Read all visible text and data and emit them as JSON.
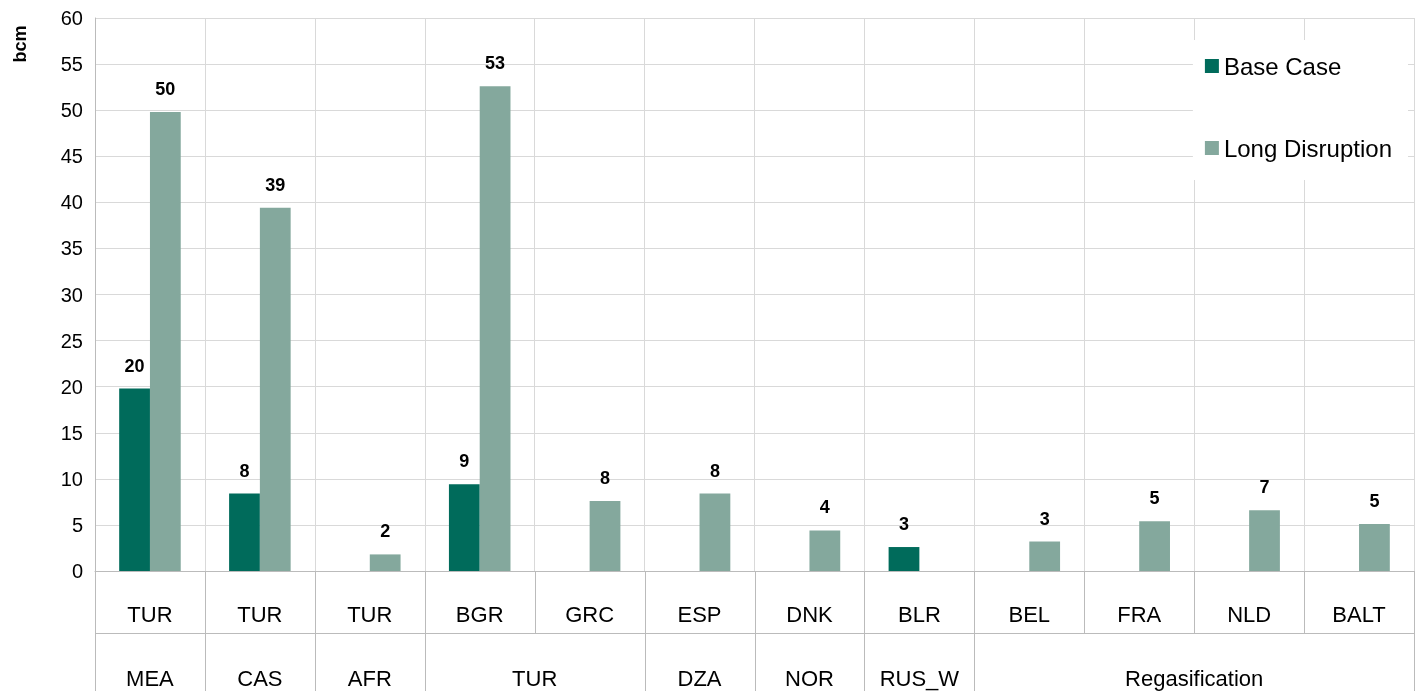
{
  "chart_data": {
    "type": "bar",
    "ylabel": "bcm",
    "categories": [
      "TUR",
      "TUR",
      "TUR",
      "BGR",
      "GRC",
      "ESP",
      "DNK",
      "BLR",
      "BEL",
      "FRA",
      "NLD",
      "BALT"
    ],
    "annotations": [
      "MEA",
      "CAS",
      "AFR",
      "TUR",
      "DZA",
      "NOR",
      "RUS_W",
      "Regasification"
    ],
    "series": [
      {
        "name": "Base Case",
        "color": "#006b5b",
        "values": [
          19.8,
          8.4,
          null,
          9.4,
          null,
          null,
          null,
          2.6,
          null,
          null,
          null,
          null
        ],
        "value_labels": [
          "20",
          "8",
          null,
          "9",
          null,
          null,
          null,
          "3",
          null,
          null,
          null,
          null
        ]
      },
      {
        "name": "Long Disruption",
        "color": "#84a89d",
        "values": [
          49.8,
          39.4,
          1.8,
          52.6,
          7.6,
          8.4,
          4.4,
          null,
          3.2,
          5.4,
          6.6,
          5.1
        ],
        "value_labels": [
          "50",
          "39",
          "2",
          "53",
          "8",
          "8",
          "4",
          null,
          "3",
          "5",
          "7",
          "5"
        ]
      }
    ],
    "ylim": [
      0,
      60
    ],
    "yticks": [
      0,
      5,
      10,
      15,
      20,
      25,
      30,
      35,
      40,
      45,
      50,
      55,
      60
    ],
    "grid": true,
    "legend": "top right"
  }
}
